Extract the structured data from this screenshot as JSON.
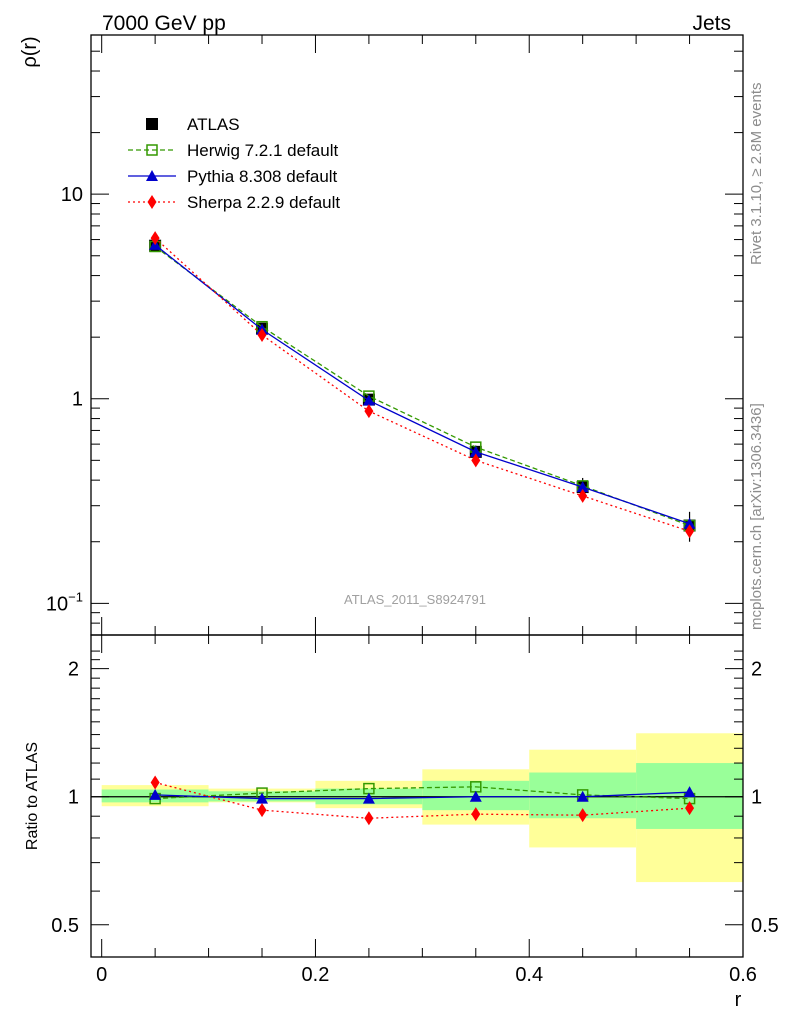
{
  "header": {
    "left": "7000 GeV pp",
    "right": "Jets"
  },
  "side_labels": {
    "top": "Rivet 3.1.10, ≥ 2.8M events",
    "bottom": "mcplots.cern.ch [arXiv:1306.3436]"
  },
  "watermark": "ATLAS_2011_S8924791",
  "colors": {
    "atlas": "#000000",
    "herwig": "#339900",
    "pythia": "#0000cc",
    "sherpa": "#ff0000",
    "band_inner": "#99ff99",
    "band_outer": "#ffff99"
  },
  "chart_data": [
    {
      "type": "line",
      "panel": "main",
      "ylabel": "ρ(r)",
      "yscale": "log",
      "ylim": [
        0.07,
        60
      ],
      "xlim": [
        -0.01,
        0.6
      ],
      "y_ticks": [
        {
          "v": 0.1,
          "base": "10",
          "exp": "−1"
        },
        {
          "v": 1,
          "base": "1",
          "exp": ""
        },
        {
          "v": 10,
          "base": "10",
          "exp": ""
        }
      ],
      "x": [
        0.05,
        0.15,
        0.25,
        0.35,
        0.45,
        0.55
      ],
      "legend_position": "top-left",
      "series": [
        {
          "name": "ATLAS",
          "key": "atlas",
          "marker": "square-filled",
          "values": [
            5.6,
            2.2,
            0.99,
            0.55,
            0.37,
            0.24
          ],
          "yerr": [
            0.25,
            0.06,
            0.04,
            0.04,
            0.04,
            0.04
          ]
        },
        {
          "name": "Herwig 7.2.1 default",
          "key": "herwig",
          "marker": "square-open",
          "line": "dashed",
          "values": [
            5.55,
            2.25,
            1.03,
            0.58,
            0.375,
            0.24
          ]
        },
        {
          "name": "Pythia 8.308 default",
          "key": "pythia",
          "marker": "triangle",
          "line": "solid",
          "values": [
            5.65,
            2.18,
            0.98,
            0.55,
            0.37,
            0.245
          ]
        },
        {
          "name": "Sherpa 2.2.9 default",
          "key": "sherpa",
          "marker": "diamond",
          "line": "dotted",
          "values": [
            6.1,
            2.05,
            0.87,
            0.5,
            0.335,
            0.225
          ]
        }
      ]
    },
    {
      "type": "line",
      "panel": "ratio",
      "ylabel": "Ratio to ATLAS",
      "xlabel": "r",
      "ylim": [
        0.42,
        2.4
      ],
      "y_ticks": [
        0.5,
        1,
        2
      ],
      "xlim": [
        -0.01,
        0.6
      ],
      "x_ticks": [
        0,
        0.2,
        0.4,
        0.6
      ],
      "bands": [
        {
          "x0": 0.0,
          "x1": 0.1,
          "inner": [
            0.97,
            1.04
          ],
          "outer": [
            0.95,
            1.065
          ]
        },
        {
          "x0": 0.1,
          "x1": 0.2,
          "inner": [
            0.975,
            1.03
          ],
          "outer": [
            0.97,
            1.045
          ]
        },
        {
          "x0": 0.2,
          "x1": 0.3,
          "inner": [
            0.96,
            1.045
          ],
          "outer": [
            0.94,
            1.09
          ]
        },
        {
          "x0": 0.3,
          "x1": 0.4,
          "inner": [
            0.93,
            1.09
          ],
          "outer": [
            0.86,
            1.16
          ]
        },
        {
          "x0": 0.4,
          "x1": 0.5,
          "inner": [
            0.89,
            1.14
          ],
          "outer": [
            0.76,
            1.29
          ]
        },
        {
          "x0": 0.5,
          "x1": 0.6,
          "inner": [
            0.84,
            1.2
          ],
          "outer": [
            0.63,
            1.41
          ]
        }
      ],
      "x": [
        0.05,
        0.15,
        0.25,
        0.35,
        0.45,
        0.55
      ],
      "series": [
        {
          "name": "Herwig 7.2.1 default",
          "key": "herwig",
          "marker": "square-open",
          "line": "dashed",
          "values": [
            0.99,
            1.02,
            1.045,
            1.055,
            1.01,
            0.99
          ]
        },
        {
          "name": "Pythia 8.308 default",
          "key": "pythia",
          "marker": "triangle",
          "line": "solid",
          "values": [
            1.01,
            0.99,
            0.99,
            1.0,
            1.0,
            1.025
          ]
        },
        {
          "name": "Sherpa 2.2.9 default",
          "key": "sherpa",
          "marker": "diamond",
          "line": "dotted",
          "values": [
            1.08,
            0.93,
            0.89,
            0.91,
            0.905,
            0.94
          ]
        }
      ]
    }
  ]
}
